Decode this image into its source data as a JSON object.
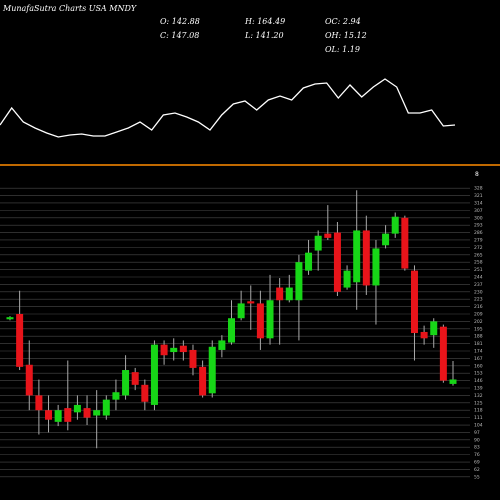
{
  "header": {
    "title": "MunafaSutra Charts USA MNDY",
    "stats": [
      "O: 142.88",
      "H: 164.49",
      "OC: 2.94",
      "C: 147.08",
      "L: 141.20",
      "OH: 15.12",
      "OL: 1.19"
    ]
  },
  "chart_data": [
    {
      "type": "line",
      "color": "#ffffff",
      "ylim": [
        0,
        70
      ],
      "values": [
        15,
        32,
        18,
        12,
        7,
        3,
        5,
        6,
        4,
        4,
        8,
        12,
        18,
        10,
        25,
        27,
        23,
        18,
        10,
        25,
        36,
        39,
        30,
        40,
        44,
        40,
        52,
        56,
        57,
        42,
        55,
        43,
        53,
        61,
        53,
        27,
        27,
        30,
        14,
        15
      ]
    },
    {
      "type": "candlestick",
      "up_color": "#17d617",
      "down_color": "#e8141a",
      "grid": true,
      "corner_label": "8",
      "ylim": [
        52,
        331
      ],
      "yticks": [
        55,
        62,
        69,
        76,
        83,
        90,
        97,
        104,
        111,
        118,
        125,
        132,
        139,
        146,
        153,
        160,
        167,
        174,
        181,
        188,
        195,
        202,
        209,
        216,
        223,
        230,
        237,
        244,
        251,
        258,
        265,
        272,
        279,
        286,
        293,
        300,
        307,
        314,
        321,
        328
      ],
      "open": [
        204,
        209,
        161,
        132,
        118,
        107,
        120,
        116,
        120,
        113,
        113,
        128,
        132,
        154,
        142,
        123,
        180,
        173,
        179,
        175,
        159,
        134,
        175,
        182,
        205,
        221,
        219,
        186,
        234,
        222,
        222,
        250,
        269,
        285,
        286,
        234,
        239,
        288,
        236,
        274,
        285,
        300,
        250,
        192,
        189,
        197,
        142.88
      ],
      "high": [
        207,
        231,
        184,
        147,
        132,
        123,
        165,
        132,
        132,
        137,
        132,
        147,
        170,
        158,
        147,
        184,
        184,
        186,
        184,
        180,
        165,
        184,
        189,
        222,
        231,
        236,
        231,
        246,
        243,
        246,
        265,
        279,
        288,
        312,
        296,
        255,
        326,
        302,
        279,
        293,
        305,
        302,
        255,
        198,
        205,
        199,
        164.49
      ],
      "low": [
        203,
        156,
        118,
        95,
        97,
        103,
        99,
        109,
        104,
        82,
        109,
        118,
        128,
        137,
        118,
        118,
        161,
        165,
        165,
        151,
        130,
        130,
        168,
        180,
        203,
        194,
        175,
        180,
        180,
        220,
        184,
        246,
        250,
        279,
        226,
        232,
        213,
        227,
        199,
        271,
        281,
        250,
        165,
        180,
        177,
        144,
        141.2
      ],
      "close": [
        206,
        159,
        132,
        118,
        109,
        118,
        107,
        123,
        111,
        118,
        128,
        135,
        156,
        142,
        126,
        180,
        170,
        177,
        173,
        158,
        132,
        178,
        184,
        205,
        219,
        219,
        186,
        222,
        222,
        234,
        258,
        267,
        283,
        281,
        230,
        250,
        288,
        236,
        271,
        285,
        301,
        252,
        191,
        186,
        202,
        146,
        147.08
      ]
    }
  ]
}
